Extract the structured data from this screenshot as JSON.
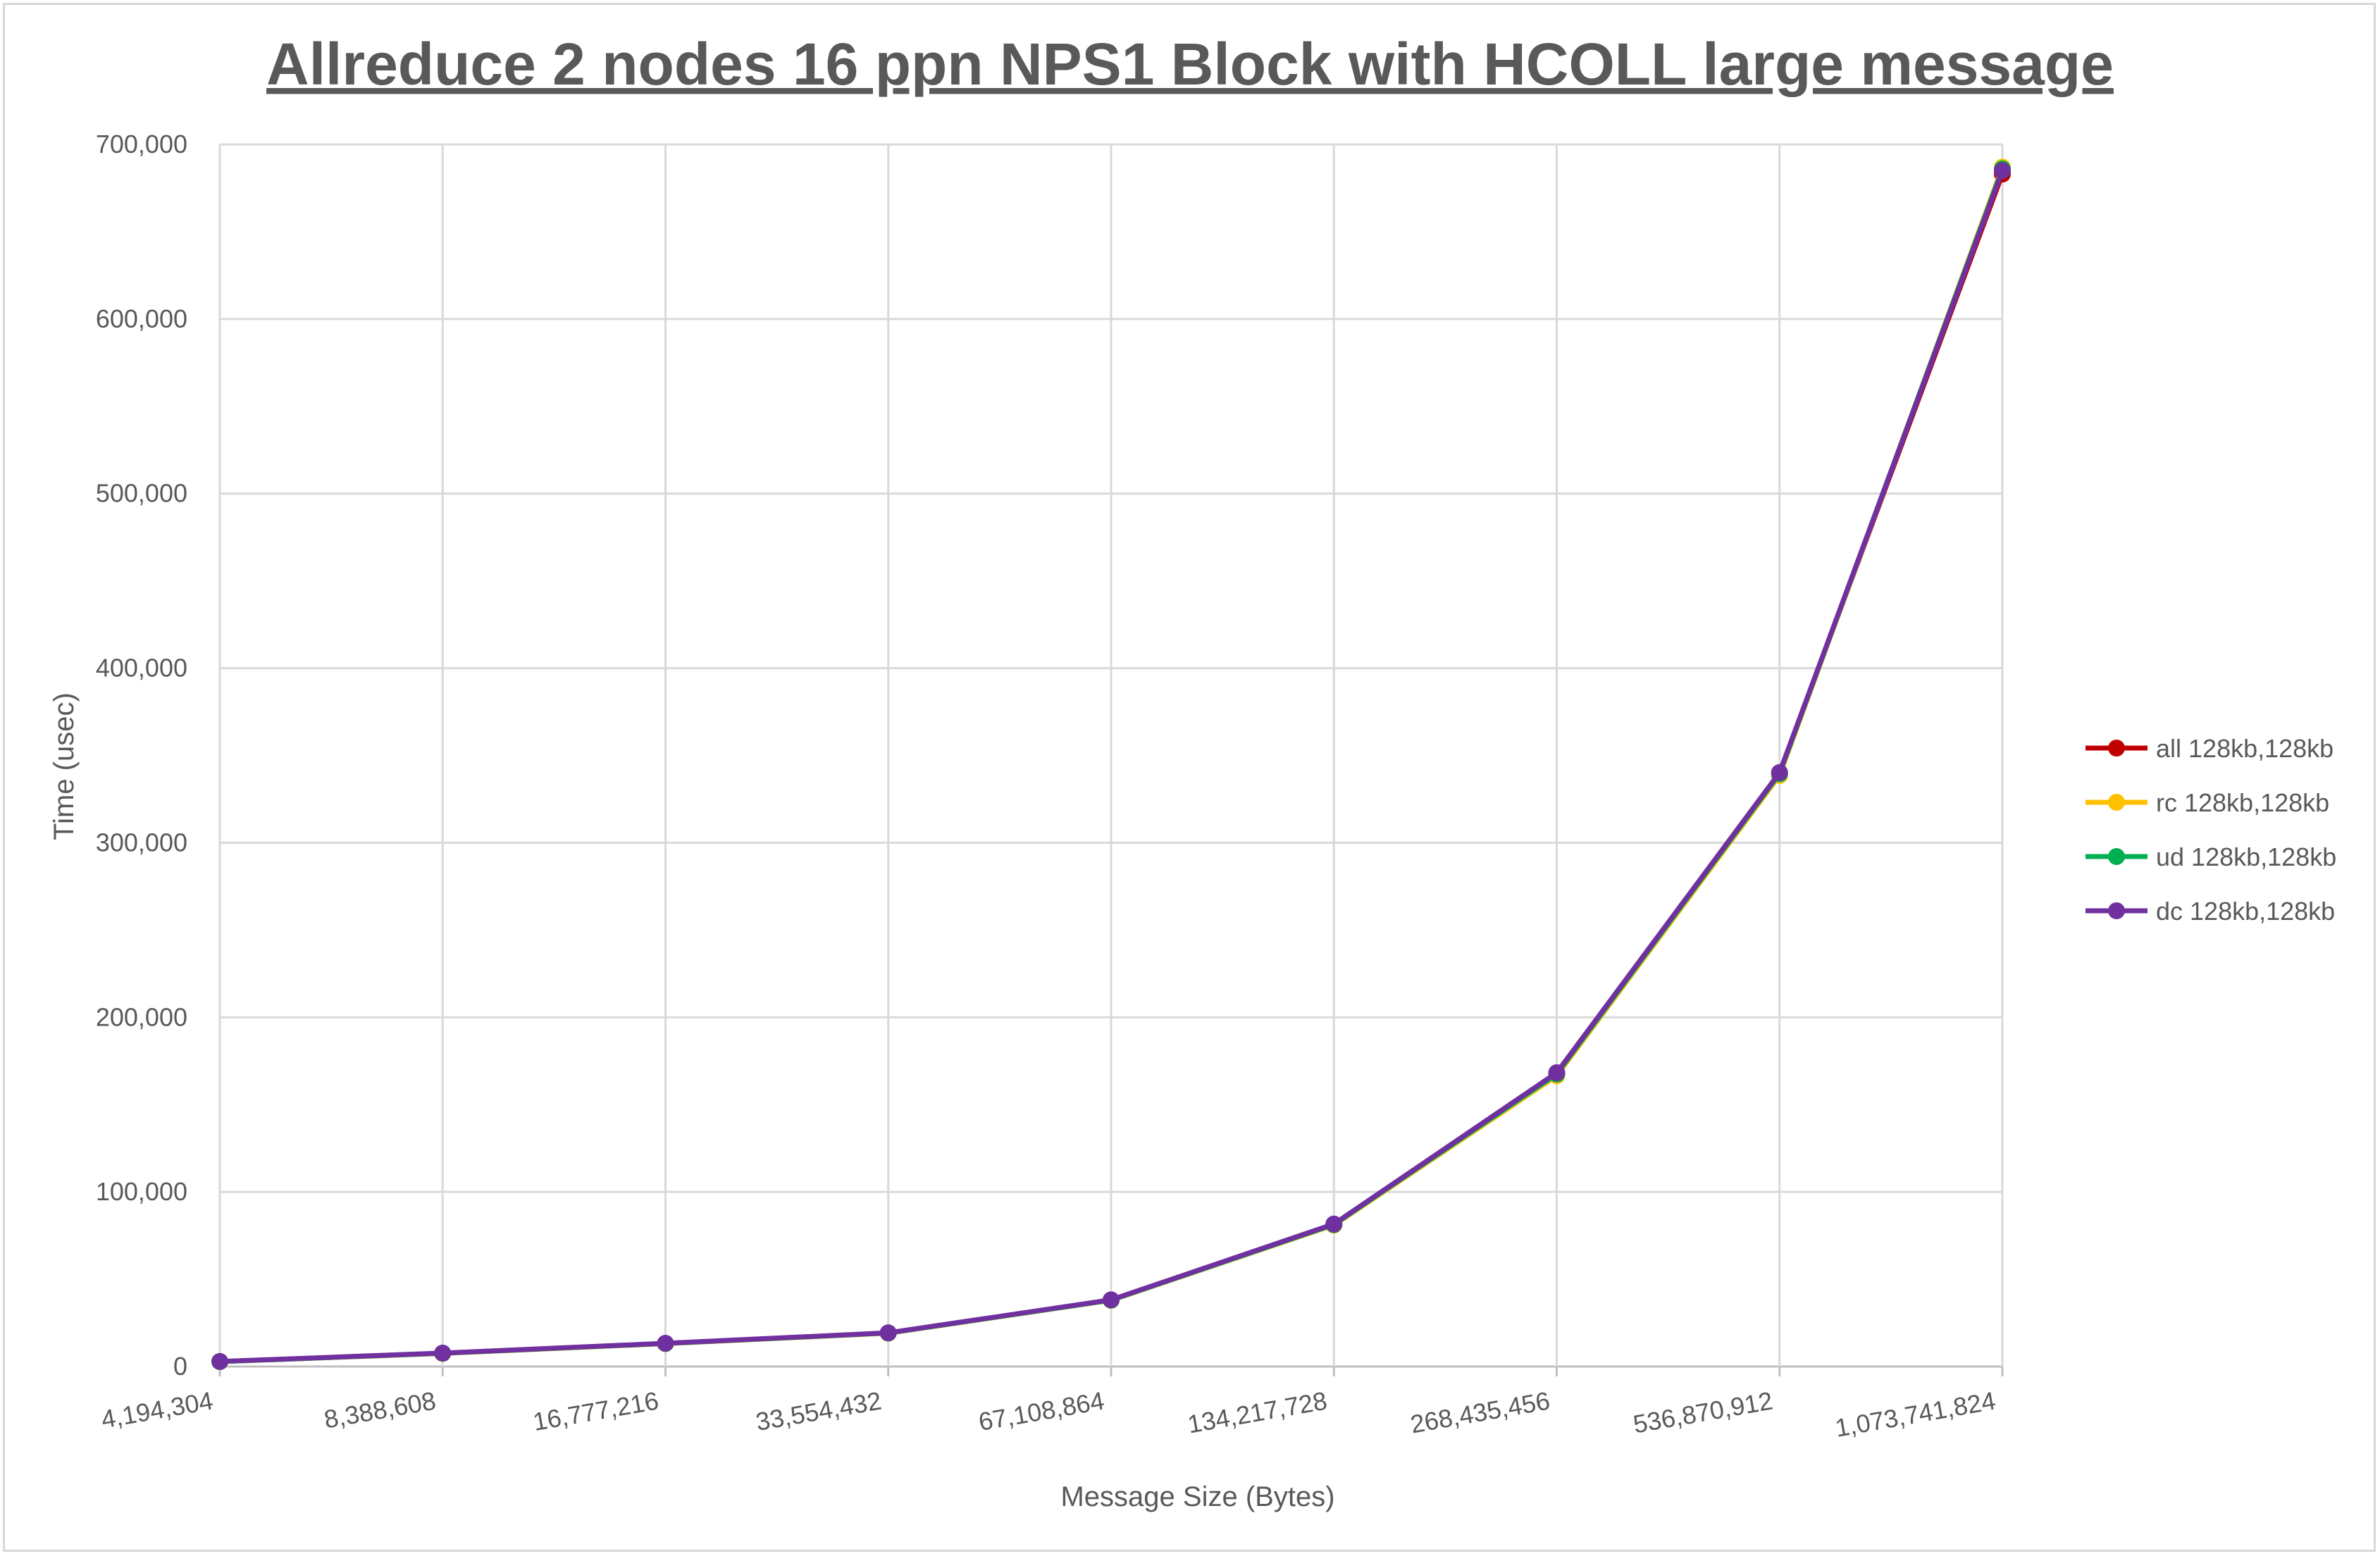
{
  "chart_data": {
    "type": "line",
    "title": "Allreduce 2 nodes 16 ppn NPS1 Block with HCOLL large message",
    "xlabel": "Message Size (Bytes)",
    "ylabel": "Time (usec)",
    "categories": [
      "4,194,304",
      "8,388,608",
      "16,777,216",
      "33,554,432",
      "67,108,864",
      "134,217,728",
      "268,435,456",
      "536,870,912",
      "1,073,741,824"
    ],
    "ylim": [
      0,
      700000
    ],
    "yticks": [
      0,
      100000,
      200000,
      300000,
      400000,
      500000,
      600000,
      700000
    ],
    "ytick_labels": [
      "0",
      "100,000",
      "200,000",
      "300,000",
      "400,000",
      "500,000",
      "600,000",
      "700,000"
    ],
    "grid": true,
    "legend_position": "right",
    "series": [
      {
        "name": "all 128kb,128kb",
        "color": "#c00000",
        "values": [
          2800,
          7600,
          13200,
          19200,
          38100,
          81500,
          168000,
          340000,
          683000
        ]
      },
      {
        "name": "rc 128kb,128kb",
        "color": "#ffc000",
        "values": [
          2800,
          7500,
          13100,
          19100,
          37900,
          81000,
          166500,
          338500,
          687000
        ]
      },
      {
        "name": "ud 128kb,128kb",
        "color": "#00b050",
        "values": [
          2800,
          7600,
          13200,
          19200,
          38000,
          81300,
          167500,
          339500,
          686000
        ]
      },
      {
        "name": "dc 128kb,128kb",
        "color": "#7030a0",
        "values": [
          2900,
          7700,
          13300,
          19300,
          38200,
          81600,
          168300,
          340200,
          685000
        ]
      }
    ]
  }
}
